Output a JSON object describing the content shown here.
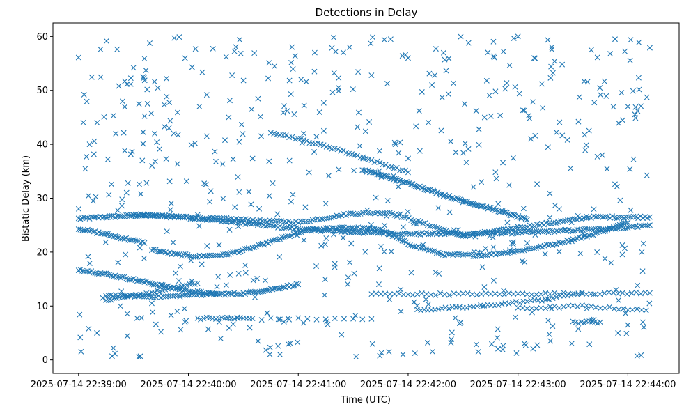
{
  "chart_data": {
    "type": "scatter",
    "title": "Detections in Delay",
    "xlabel": "Time (UTC)",
    "ylabel": "Bistatic Delay (km)",
    "x_time_range": [
      "2025-07-14 22:38:46",
      "2025-07-14 22:44:28"
    ],
    "ylim": [
      -2.5,
      62.5
    ],
    "x_ticks": [
      "2025-07-14 22:39:00",
      "2025-07-14 22:40:00",
      "2025-07-14 22:41:00",
      "2025-07-14 22:42:00",
      "2025-07-14 22:43:00",
      "2025-07-14 22:44:00"
    ],
    "y_ticks": [
      0,
      10,
      20,
      30,
      40,
      50,
      60
    ],
    "marker": "x",
    "color": "#1f77b4",
    "grid": false,
    "series": [
      {
        "name": "",
        "tracks": [
          {
            "t": [
              "2025-07-14 22:39:00",
              "2025-07-14 22:39:09",
              "2025-07-14 22:39:18",
              "2025-07-14 22:39:27",
              "2025-07-14 22:39:36"
            ],
            "y": [
              26.2,
              26.4,
              26.6,
              26.7,
              26.8
            ],
            "step_s": 1.0
          },
          {
            "t": [
              "2025-07-14 22:39:36",
              "2025-07-14 22:40:00",
              "2025-07-14 22:40:30",
              "2025-07-14 22:41:00",
              "2025-07-14 22:41:30",
              "2025-07-14 22:42:00",
              "2025-07-14 22:42:30",
              "2025-07-14 22:43:00",
              "2025-07-14 22:43:30",
              "2025-07-14 22:44:00",
              "2025-07-14 22:44:12"
            ],
            "y": [
              26.8,
              26.4,
              25.4,
              24.3,
              23.7,
              23.4,
              23.4,
              23.6,
              24.0,
              24.6,
              25.0
            ],
            "step_s": 1.1
          },
          {
            "t": [
              "2025-07-14 22:39:30",
              "2025-07-14 22:40:00",
              "2025-07-14 22:40:30",
              "2025-07-14 22:41:00",
              "2025-07-14 22:41:30",
              "2025-07-14 22:41:50",
              "2025-07-14 22:42:30",
              "2025-07-14 22:43:00",
              "2025-07-14 22:43:40",
              "2025-07-14 22:44:12"
            ],
            "y": [
              27.0,
              26.5,
              26.0,
              25.5,
              27.2,
              27.3,
              23.0,
              24.5,
              26.5,
              26.5
            ],
            "step_s": 1.3
          },
          {
            "t": [
              "2025-07-14 22:39:00",
              "2025-07-14 22:39:12",
              "2025-07-14 22:39:24",
              "2025-07-14 22:39:36"
            ],
            "y": [
              24.3,
              23.5,
              22.6,
              21.7
            ],
            "step_s": 1.0
          },
          {
            "t": [
              "2025-07-14 22:39:40",
              "2025-07-14 22:39:52",
              "2025-07-14 22:40:05",
              "2025-07-14 22:40:20",
              "2025-07-14 22:40:35",
              "2025-07-14 22:40:50",
              "2025-07-14 22:41:05",
              "2025-07-14 22:41:25",
              "2025-07-14 22:41:45",
              "2025-07-14 22:42:00",
              "2025-07-14 22:42:20",
              "2025-07-14 22:42:40",
              "2025-07-14 22:43:00",
              "2025-07-14 22:43:20",
              "2025-07-14 22:43:40",
              "2025-07-14 22:44:00"
            ],
            "y": [
              20.5,
              19.6,
              19.2,
              19.5,
              20.8,
              22.5,
              24.0,
              24.6,
              24.2,
              21.5,
              19.5,
              19.4,
              20.2,
              21.5,
              23.2,
              25.5
            ],
            "step_s": 1.1
          },
          {
            "t": [
              "2025-07-14 22:39:00",
              "2025-07-14 22:39:15",
              "2025-07-14 22:39:30",
              "2025-07-14 22:39:45",
              "2025-07-14 22:40:00",
              "2025-07-14 22:40:15",
              "2025-07-14 22:40:30",
              "2025-07-14 22:40:45",
              "2025-07-14 22:41:00"
            ],
            "y": [
              16.8,
              15.9,
              14.9,
              13.8,
              12.8,
              12.2,
              12.3,
              13.1,
              14.0
            ],
            "step_s": 1.0
          },
          {
            "t": [
              "2025-07-14 22:39:15",
              "2025-07-14 22:39:40",
              "2025-07-14 22:40:05"
            ],
            "y": [
              11.0,
              12.5,
              14.2
            ],
            "step_s": 1.5
          },
          {
            "t": [
              "2025-07-14 22:39:15",
              "2025-07-14 22:39:45",
              "2025-07-14 22:40:15"
            ],
            "y": [
              12.0,
              11.7,
              12.3
            ],
            "step_s": 1.3
          },
          {
            "t": [
              "2025-07-14 22:40:05",
              "2025-07-14 22:40:20",
              "2025-07-14 22:40:35"
            ],
            "y": [
              7.7,
              7.7,
              7.7
            ],
            "step_s": 1.6
          },
          {
            "t": [
              "2025-07-14 22:40:40",
              "2025-07-14 22:41:40"
            ],
            "y": [
              7.6,
              7.6
            ],
            "step_s": 5.0
          },
          {
            "t": [
              "2025-07-14 22:41:40",
              "2025-07-14 22:42:10",
              "2025-07-14 22:42:40",
              "2025-07-14 22:43:20",
              "2025-07-14 22:44:12"
            ],
            "y": [
              12.2,
              12.2,
              12.2,
              12.3,
              12.4
            ],
            "step_s": 2.5
          },
          {
            "t": [
              "2025-07-14 22:42:05",
              "2025-07-14 22:42:30",
              "2025-07-14 22:42:55",
              "2025-07-14 22:43:15",
              "2025-07-14 22:43:35"
            ],
            "y": [
              9.3,
              9.7,
              10.5,
              11.2,
              12.5
            ],
            "step_s": 2.0
          },
          {
            "t": [
              "2025-07-14 22:43:00",
              "2025-07-14 22:43:35",
              "2025-07-14 22:44:10"
            ],
            "y": [
              9.5,
              10.0,
              9.2
            ],
            "step_s": 2.5
          },
          {
            "t": [
              "2025-07-14 22:43:30",
              "2025-07-14 22:43:45"
            ],
            "y": [
              7.0,
              7.0
            ],
            "step_s": 1.5
          },
          {
            "t": [
              "2025-07-14 22:40:45",
              "2025-07-14 22:41:00",
              "2025-07-14 22:41:20",
              "2025-07-14 22:41:40",
              "2025-07-14 22:42:00"
            ],
            "y": [
              42.3,
              41.0,
              39.2,
              37.0,
              34.8
            ],
            "step_s": 1.6
          },
          {
            "t": [
              "2025-07-14 22:41:35",
              "2025-07-14 22:42:00",
              "2025-07-14 22:42:25",
              "2025-07-14 22:42:50",
              "2025-07-14 22:43:05"
            ],
            "y": [
              35.3,
              32.8,
              30.0,
              27.6,
              26.0
            ],
            "step_s": 0.8
          }
        ],
        "scattered": {
          "t": [
            "2025-07-14 22:39:00",
            "2025-07-14 22:39:03",
            "2025-07-14 22:39:06",
            "2025-07-14 22:39:08",
            "2025-07-14 22:39:10",
            "2025-07-14 22:39:12",
            "2025-07-14 22:39:16",
            "2025-07-14 22:39:19",
            "2025-07-14 22:39:22",
            "2025-07-14 22:39:27",
            "2025-07-14 22:39:30",
            "2025-07-14 22:39:33",
            "2025-07-14 22:39:36",
            "2025-07-14 22:39:40",
            "2025-07-14 22:39:45",
            "2025-07-14 22:39:48",
            "2025-07-14 22:39:52",
            "2025-07-14 22:39:55",
            "2025-07-14 22:40:02",
            "2025-07-14 22:40:06",
            "2025-07-14 22:40:10",
            "2025-07-14 22:40:15",
            "2025-07-14 22:40:22",
            "2025-07-14 22:40:28",
            "2025-07-14 22:40:33",
            "2025-07-14 22:40:38",
            "2025-07-14 22:40:44",
            "2025-07-14 22:40:50",
            "2025-07-14 22:40:56",
            "2025-07-14 22:41:03",
            "2025-07-14 22:41:09",
            "2025-07-14 22:41:15",
            "2025-07-14 22:41:22",
            "2025-07-14 22:41:28",
            "2025-07-14 22:41:33",
            "2025-07-14 22:41:40",
            "2025-07-14 22:41:47",
            "2025-07-14 22:41:53",
            "2025-07-14 22:42:00",
            "2025-07-14 22:42:06",
            "2025-07-14 22:42:13",
            "2025-07-14 22:42:20",
            "2025-07-14 22:42:26",
            "2025-07-14 22:42:33",
            "2025-07-14 22:42:40",
            "2025-07-14 22:42:47",
            "2025-07-14 22:42:53",
            "2025-07-14 22:43:00",
            "2025-07-14 22:43:07",
            "2025-07-14 22:43:13",
            "2025-07-14 22:43:20",
            "2025-07-14 22:43:27",
            "2025-07-14 22:43:33",
            "2025-07-14 22:43:40",
            "2025-07-14 22:43:46",
            "2025-07-14 22:43:53",
            "2025-07-14 22:44:00",
            "2025-07-14 22:44:06",
            "2025-07-14 22:44:12"
          ],
          "y": [
            56.1,
            49.2,
            40.0,
            29.5,
            5.0,
            57.6,
            37.2,
            2.2,
            50.8,
            32.8,
            54.2,
            47.5,
            55.9,
            10.5,
            5.2,
            52.2,
            42.0,
            59.9,
            54.3,
            47.0,
            41.5,
            36.8,
            45.0,
            59.4,
            31.2,
            3.5,
            55.1,
            1.0,
            49.3,
            42.0,
            57.0,
            29.0,
            50.5,
            58.0,
            45.9,
            52.8,
            59.4,
            40.0,
            56.0,
            46.2,
            51.0,
            55.7,
            38.5,
            58.8,
            33.0,
            56.1,
            50.3,
            60.0,
            41.0,
            51.2,
            55.4,
            40.8,
            44.2,
            57.5,
            38.0,
            59.5,
            47.0,
            58.9,
            57.9
          ]
        }
      }
    ]
  }
}
